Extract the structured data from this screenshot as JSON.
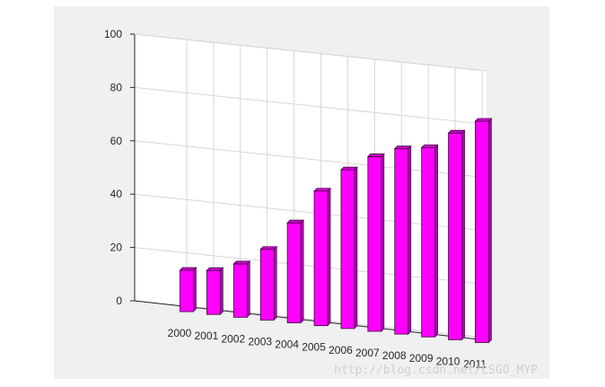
{
  "chart_data": {
    "type": "bar",
    "style": "3d",
    "categories": [
      "2000",
      "2001",
      "2002",
      "2003",
      "2004",
      "2005",
      "2006",
      "2007",
      "2008",
      "2009",
      "2010",
      "2011"
    ],
    "values": [
      15.5,
      16.5,
      20,
      26.5,
      37.5,
      50.5,
      59.5,
      65.5,
      69.5,
      71,
      77.5,
      83
    ],
    "title": "",
    "xlabel": "",
    "ylabel": "",
    "ylim": [
      0,
      100
    ],
    "yticks": [
      0,
      20,
      40,
      60,
      80,
      100
    ],
    "grid": true,
    "bar_color": "#ff00ff",
    "background_color": "#f0f0f0"
  },
  "watermark": "http://blog.csdn.net/LSGO_MYP"
}
